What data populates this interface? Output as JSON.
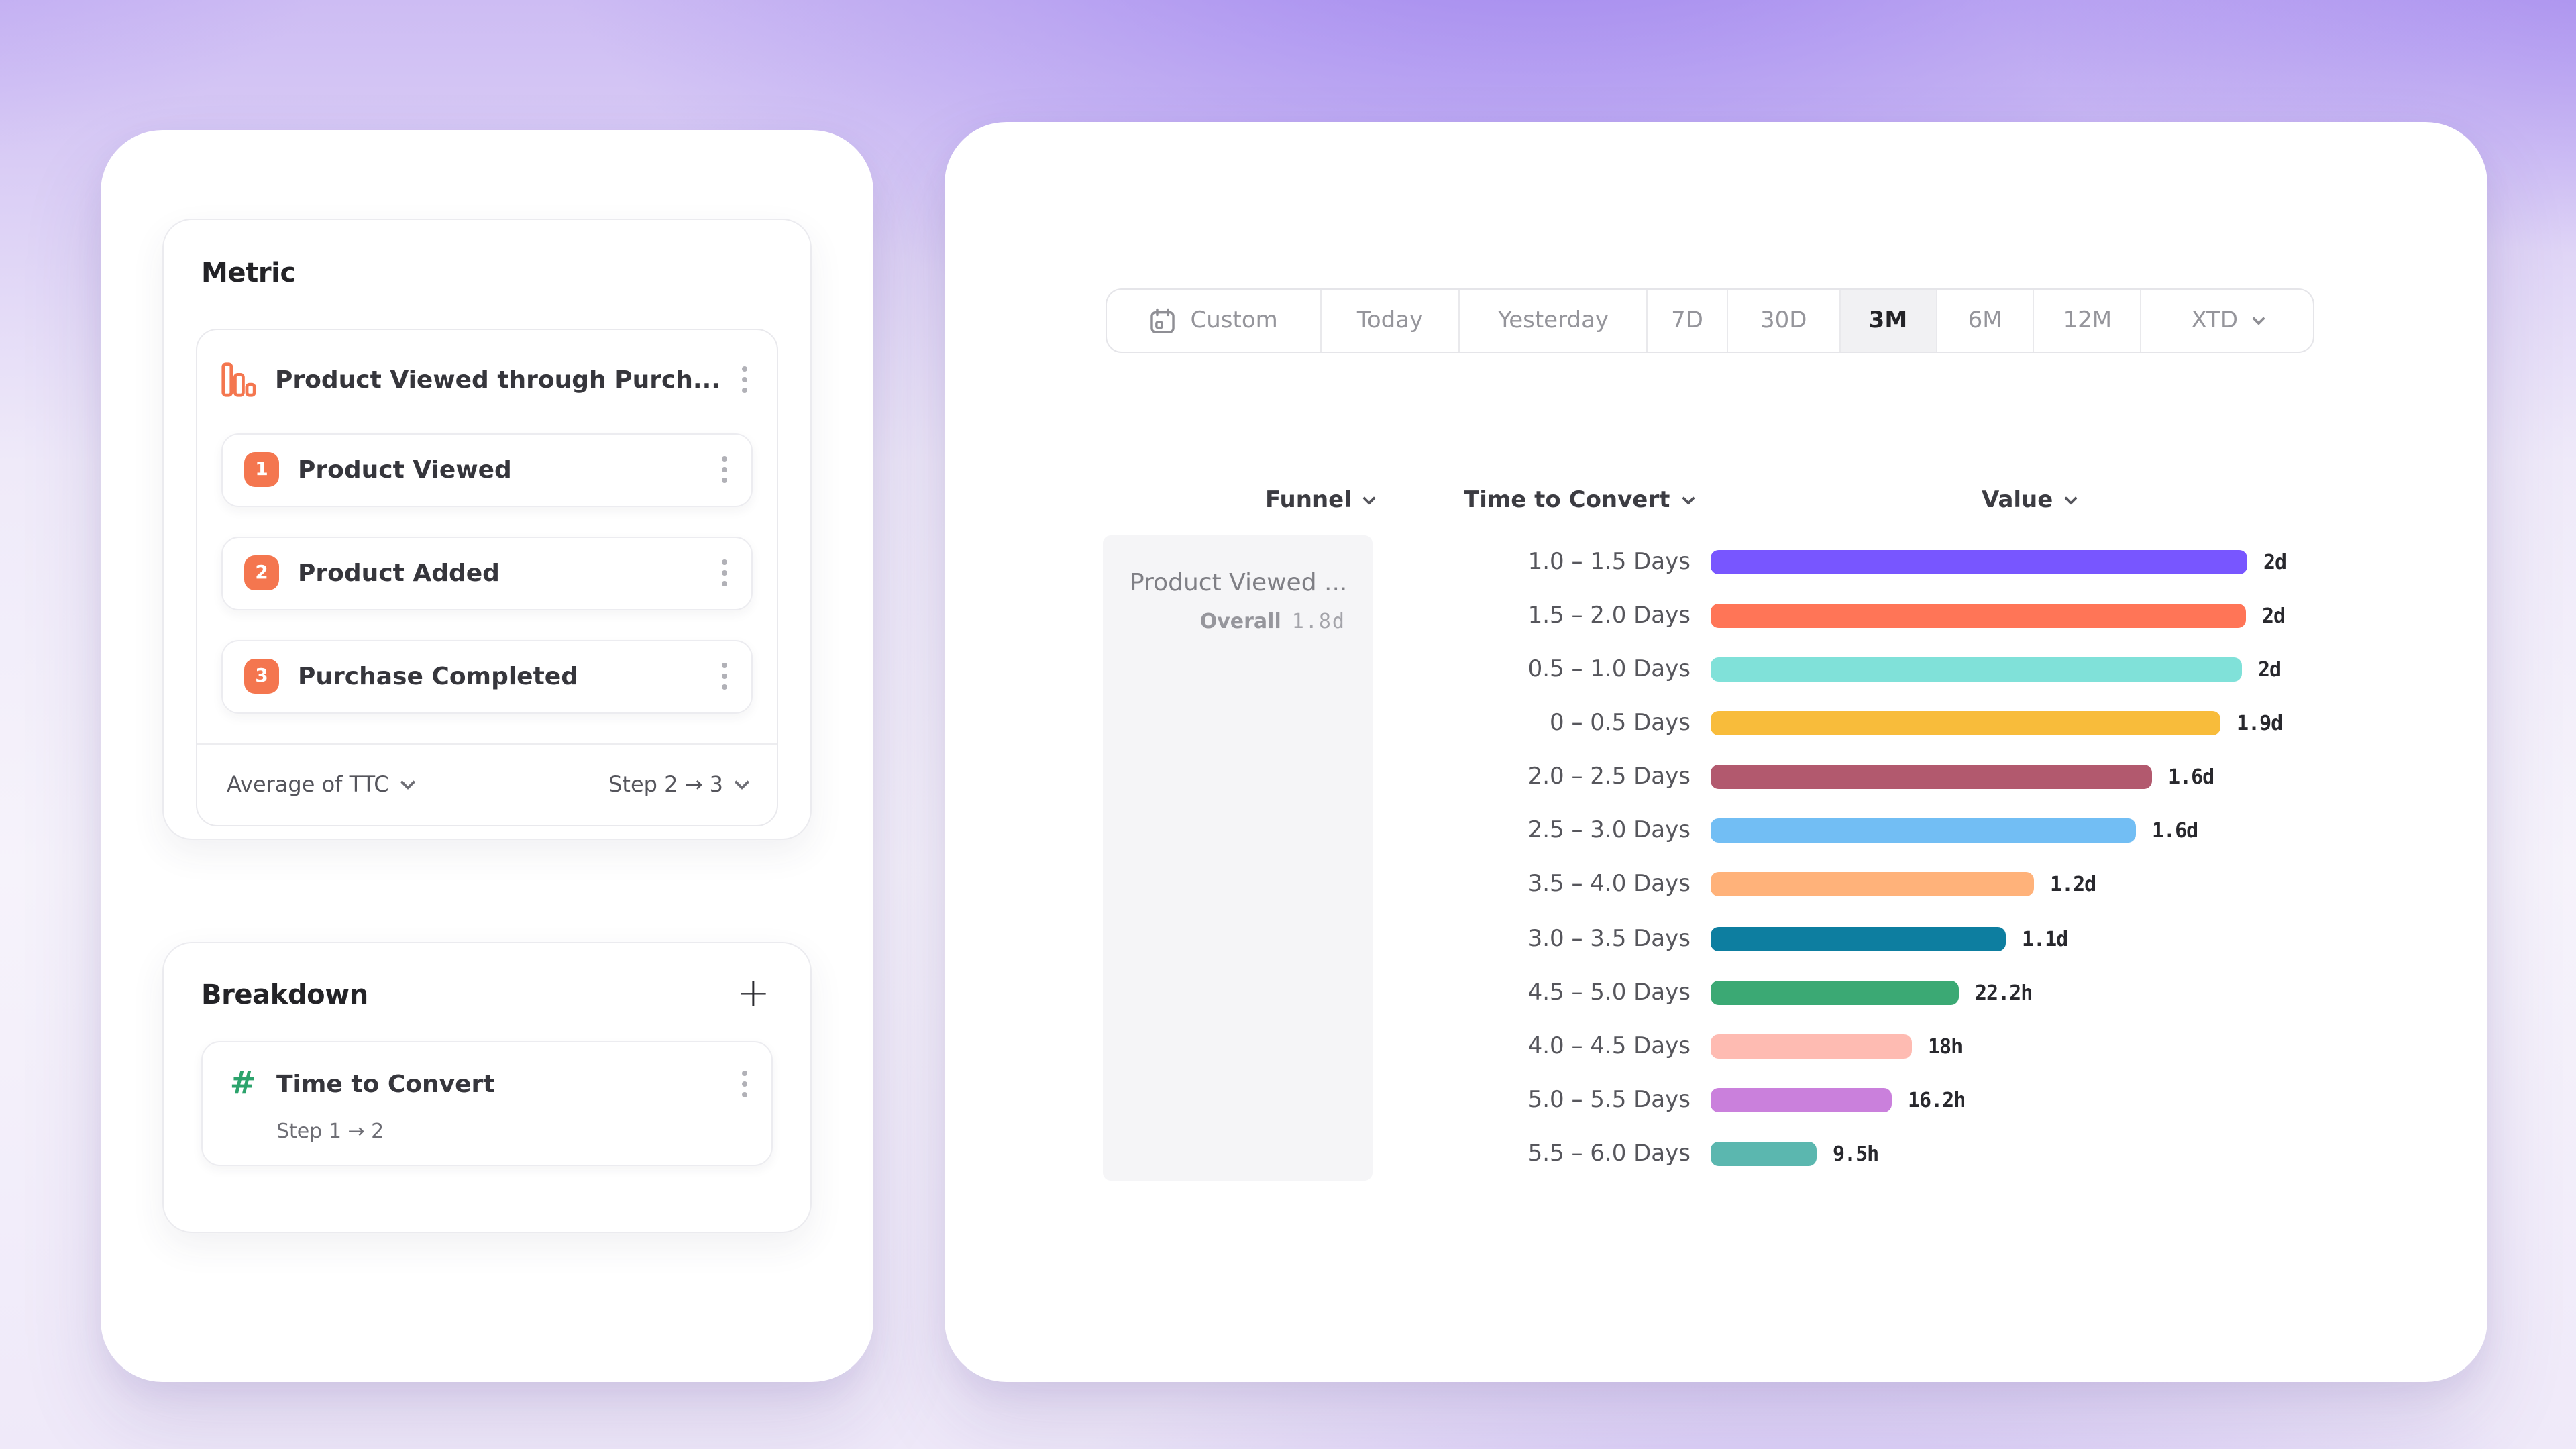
{
  "ui_colors": {
    "accent_orange": "#f4764f",
    "accent_green": "#2ca36c",
    "selected_tab_bg": "#f1f1f3",
    "funnel_cell_bg": "#f5f5f7"
  },
  "left_panel": {
    "metric": {
      "title": "Metric",
      "funnel": {
        "icon": "funnel-chart-icon",
        "name": "Product Viewed through Purch...",
        "steps": [
          {
            "index": "1",
            "label": "Product Viewed"
          },
          {
            "index": "2",
            "label": "Product Added"
          },
          {
            "index": "3",
            "label": "Purchase Completed"
          }
        ],
        "aggregation": "Average of TTC",
        "step_range": "Step 2 → 3"
      }
    },
    "breakdown": {
      "title": "Breakdown",
      "add_icon": "+",
      "items": [
        {
          "icon": "hash-icon",
          "name": "Time to Convert",
          "detail": "Step 1 → 2"
        }
      ]
    }
  },
  "right_panel": {
    "date_range_tabs": [
      {
        "label": "Custom",
        "icon": "calendar-icon",
        "selected": false
      },
      {
        "label": "Today",
        "selected": false
      },
      {
        "label": "Yesterday",
        "selected": false
      },
      {
        "label": "7D",
        "selected": false
      },
      {
        "label": "30D",
        "selected": false
      },
      {
        "label": "3M",
        "selected": true
      },
      {
        "label": "6M",
        "selected": false
      },
      {
        "label": "12M",
        "selected": false
      },
      {
        "label": "XTD",
        "selected": false,
        "chevron": true
      }
    ],
    "table": {
      "columns": [
        "Funnel",
        "Time to Convert",
        "Value"
      ],
      "funnel_cell": {
        "name": "Product Viewed ...",
        "overall_label": "Overall",
        "overall_value": "1.8d"
      }
    }
  },
  "chart_data": {
    "type": "bar",
    "orientation": "horizontal",
    "title": "Time to Convert breakdown of Product Viewed through Purchase funnel",
    "xlabel": "Value",
    "ylabel": "Time to Convert",
    "categories": [
      "1.0 – 1.5 Days",
      "1.5 – 2.0 Days",
      "0.5 – 1.0 Days",
      "0 – 0.5 Days",
      "2.0 – 2.5 Days",
      "2.5 – 3.0 Days",
      "3.5 – 4.0 Days",
      "3.0 – 3.5 Days",
      "4.5 – 5.0 Days",
      "4.0 – 4.5 Days",
      "5.0 – 5.5 Days",
      "5.5 – 6.0 Days"
    ],
    "values_display": [
      "2d",
      "2d",
      "2d",
      "1.9d",
      "1.6d",
      "1.6d",
      "1.2d",
      "1.1d",
      "22.2h",
      "18h",
      "16.2h",
      "9.5h"
    ],
    "values_hours": [
      48,
      47.9,
      47.5,
      45.6,
      39.5,
      38.0,
      28.9,
      26.4,
      22.2,
      18.0,
      16.2,
      9.5
    ],
    "max_hours": 48,
    "bar_colors": [
      "#7856FF",
      "#FF7557",
      "#80E1D9",
      "#F8BC3B",
      "#B2596E",
      "#72BEF4",
      "#FFB27A",
      "#0D7EA0",
      "#3BA974",
      "#FEBBB2",
      "#CA80DC",
      "#5BB7AF"
    ],
    "overall": "1.8d",
    "grid": false,
    "legend": false
  }
}
